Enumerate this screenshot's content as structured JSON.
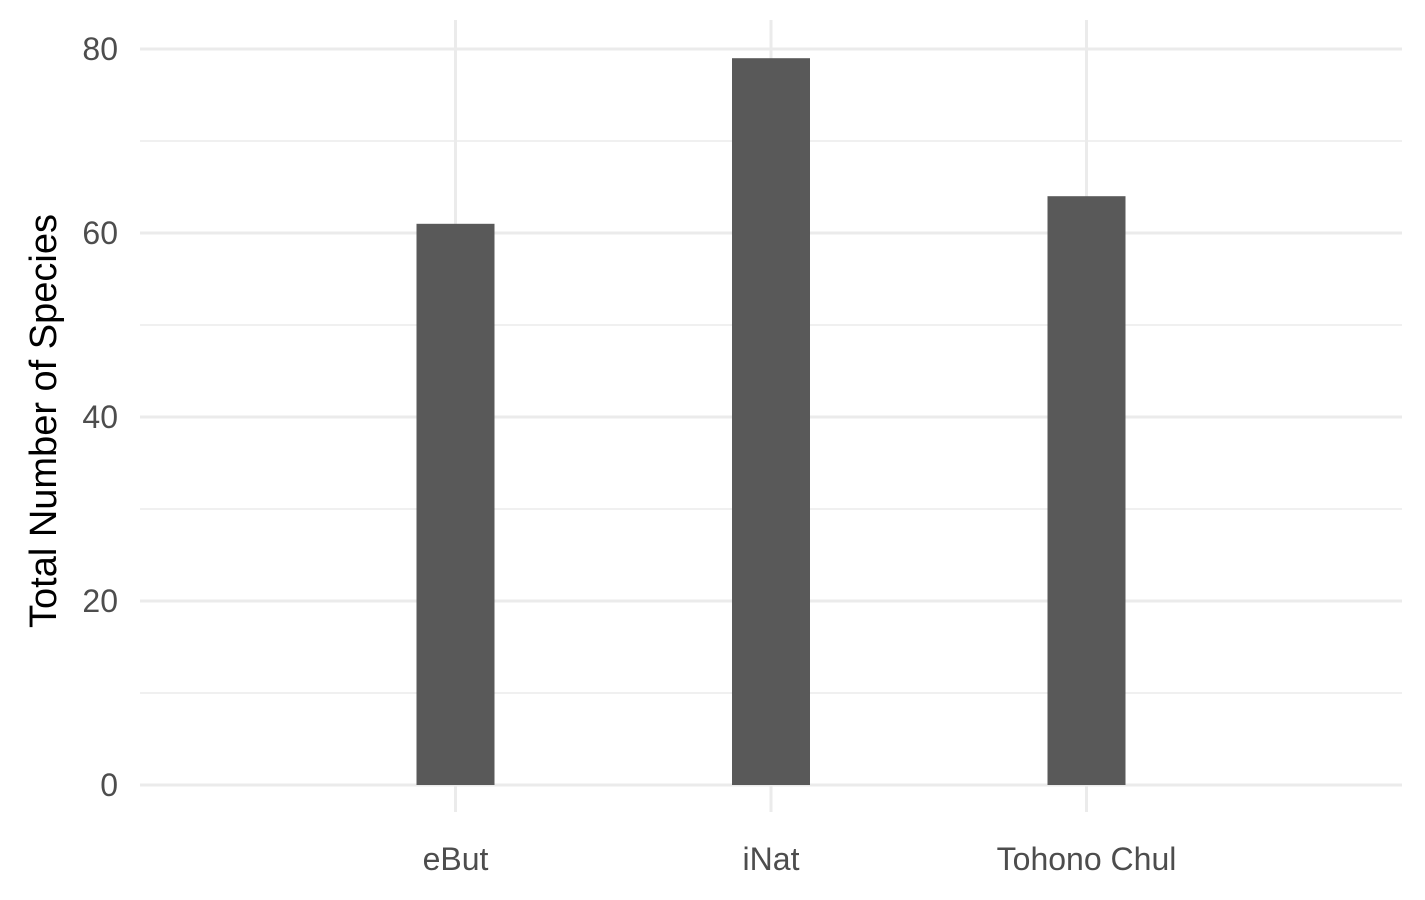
{
  "chart_data": {
    "type": "bar",
    "categories": [
      "eBut",
      "iNat",
      "Tohono Chul"
    ],
    "values": [
      61,
      79,
      64
    ],
    "title": "",
    "xlabel": "",
    "ylabel": "Total Number of Species",
    "ylim": [
      0,
      80
    ],
    "yticks": [
      0,
      20,
      40,
      60,
      80
    ],
    "y_minor_ticks": [
      10,
      30,
      50,
      70
    ],
    "grid": true,
    "legend": "none",
    "colors": {
      "bar": "#595959",
      "grid": "#ebebeb",
      "tick_label": "#4d4d4d",
      "axis_title": "#000000",
      "background": "#ffffff"
    }
  }
}
